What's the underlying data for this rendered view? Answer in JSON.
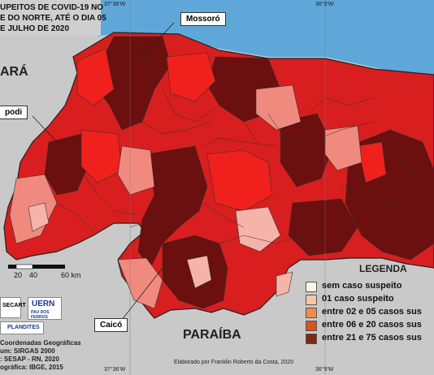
{
  "title": {
    "line1": "UPEITOS DE COVID-19 NO",
    "line2": "E DO NORTE, ATÉ O DIA 05",
    "line3": "E JULHO DE 2020"
  },
  "callouts": {
    "mossoro": "Mossoró",
    "apodi": "podi",
    "caico": "Caicó"
  },
  "regions": {
    "ceara": "ARÁ",
    "paraiba": "PARAÍBA"
  },
  "coordinates": {
    "top_left": "37°36'W",
    "top_right": "36°9'W",
    "bottom_left": "37°36'W",
    "bottom_right": "36°9'W"
  },
  "scale": {
    "label_20": "20",
    "label_40": "40",
    "label_60": "60 km"
  },
  "legend": {
    "title": "LEGENDA",
    "items": [
      {
        "label": "sem caso suspeito",
        "color": "#fbf3e6"
      },
      {
        "label": "01 caso suspeito",
        "color": "#f7c7a3"
      },
      {
        "label": "entre 02 e 05 casos sus",
        "color": "#f28a4d"
      },
      {
        "label": "entre 06 e 20 casos sus",
        "color": "#d9541b"
      },
      {
        "label": "entre 21 e 75 casos sus",
        "color": "#7a2a12"
      }
    ]
  },
  "info": {
    "line1": "Coordenadas Geográficas",
    "line2": "um: SIRGAS 2000",
    "line3": ": SESAP - RN, 2020",
    "line4": "ográfica: IBGE, 2015"
  },
  "credit": "Elaborado por Franklin Roberto da Costa, 2020",
  "logos": {
    "uern": "UERN",
    "uern_sub": "PAU DOS FERROS",
    "plandites": "PLANDITES",
    "secart": "SECART"
  },
  "colors": {
    "dark": "#6b0f0f",
    "red": "#d81e1e",
    "bright": "#f0201c",
    "medium": "#e24a44",
    "light": "#f08a7f",
    "pale": "#f6b3aa",
    "sea": "#5fa7d8",
    "land": "#c9c9c9"
  }
}
